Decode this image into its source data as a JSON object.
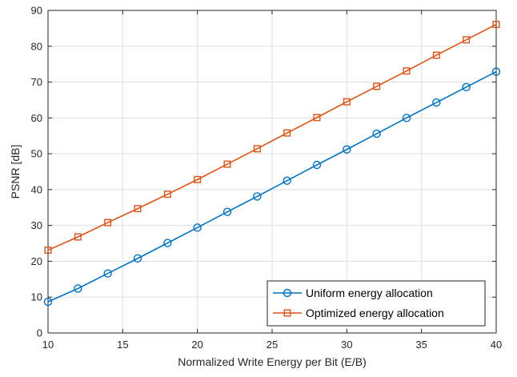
{
  "chart_data": {
    "type": "line",
    "xlabel": "Normalized Write Energy per Bit (E/B)",
    "ylabel": "PSNR [dB]",
    "xlim": [
      10,
      40
    ],
    "ylim": [
      0,
      90
    ],
    "xticks": [
      10,
      15,
      20,
      25,
      30,
      35,
      40
    ],
    "yticks": [
      0,
      10,
      20,
      30,
      40,
      50,
      60,
      70,
      80,
      90
    ],
    "grid": true,
    "legend_position": "bottom-right",
    "x": [
      10,
      12,
      14,
      16,
      18,
      20,
      22,
      24,
      26,
      28,
      30,
      32,
      34,
      36,
      38,
      40
    ],
    "series": [
      {
        "name": "Uniform energy allocation",
        "color": "#0072BD",
        "marker": "circle",
        "values": [
          8.7,
          12.4,
          16.6,
          20.8,
          25.1,
          29.4,
          33.8,
          38.1,
          42.5,
          46.9,
          51.2,
          55.6,
          60.0,
          64.3,
          68.6,
          72.9
        ]
      },
      {
        "name": "Optimized energy allocation",
        "color": "#D95319",
        "marker": "square",
        "values": [
          23.1,
          26.8,
          30.8,
          34.7,
          38.7,
          42.8,
          47.1,
          51.4,
          55.8,
          60.1,
          64.5,
          68.8,
          73.1,
          77.5,
          81.8,
          86.1
        ]
      }
    ]
  }
}
